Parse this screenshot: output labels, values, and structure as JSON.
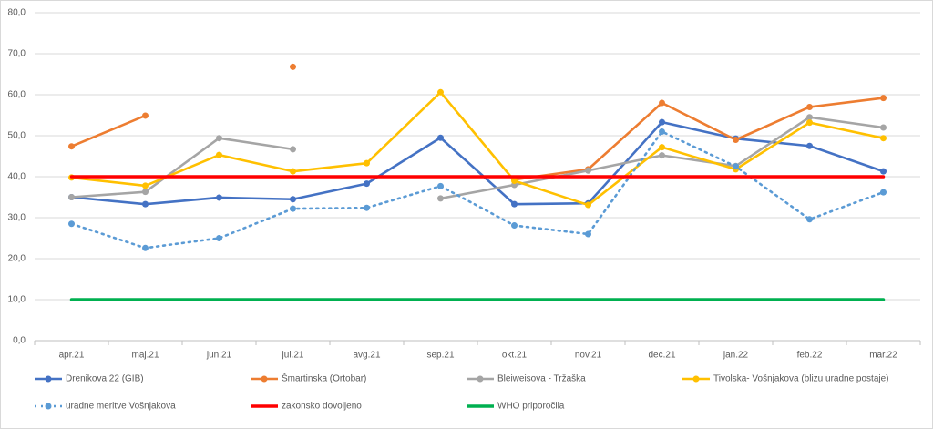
{
  "chart_data": {
    "type": "line",
    "categories": [
      "apr.21",
      "maj.21",
      "jun.21",
      "jul.21",
      "avg.21",
      "sep.21",
      "okt.21",
      "nov.21",
      "dec.21",
      "jan.22",
      "feb.22",
      "mar.22"
    ],
    "series": [
      {
        "name": "Drenikova 22 (GIB)",
        "color": "#4472c4",
        "dash": "solid",
        "marker": true,
        "values": [
          35.0,
          33.3,
          34.9,
          34.5,
          38.3,
          49.5,
          33.3,
          33.5,
          53.3,
          49.3,
          47.5,
          41.3
        ]
      },
      {
        "name": "Šmartinska (Ortobar)",
        "color": "#ed7d31",
        "dash": "solid",
        "marker": true,
        "values": [
          47.4,
          54.9,
          null,
          66.8,
          null,
          null,
          39.3,
          41.8,
          58.0,
          49.0,
          57.0,
          59.2
        ]
      },
      {
        "name": "Bleiweisova - Tržaška",
        "color": "#a5a5a5",
        "dash": "solid",
        "marker": true,
        "values": [
          35.0,
          36.3,
          49.4,
          46.7,
          null,
          34.7,
          38.0,
          41.5,
          45.2,
          42.6,
          54.5,
          52.0
        ]
      },
      {
        "name": "Tivolska- Vošnjakova (blizu uradne postaje)",
        "color": "#ffc000",
        "dash": "solid",
        "marker": true,
        "values": [
          39.8,
          37.8,
          45.3,
          41.3,
          43.3,
          60.6,
          39.0,
          33.1,
          47.2,
          41.8,
          53.2,
          49.4
        ]
      },
      {
        "name": "uradne meritve Vošnjakova",
        "color": "#5b9bd5",
        "dash": "dotted",
        "marker": true,
        "values": [
          28.5,
          22.6,
          25.0,
          32.2,
          32.4,
          37.7,
          28.1,
          26.0,
          51.0,
          42.5,
          29.6,
          36.2
        ]
      },
      {
        "name": "zakonsko dovoljeno",
        "color": "#ff0000",
        "dash": "solid",
        "marker": false,
        "values": [
          40,
          40,
          40,
          40,
          40,
          40,
          40,
          40,
          40,
          40,
          40,
          40
        ]
      },
      {
        "name": "WHO priporočila",
        "color": "#00b050",
        "dash": "solid",
        "marker": false,
        "values": [
          10,
          10,
          10,
          10,
          10,
          10,
          10,
          10,
          10,
          10,
          10,
          10
        ]
      }
    ],
    "ylim": [
      0,
      80
    ],
    "yticks": [
      {
        "value": 0,
        "label": "0,0"
      },
      {
        "value": 10,
        "label": "10,0"
      },
      {
        "value": 20,
        "label": "20,0"
      },
      {
        "value": 30,
        "label": "30,0"
      },
      {
        "value": 40,
        "label": "40,0"
      },
      {
        "value": 50,
        "label": "50,0"
      },
      {
        "value": 60,
        "label": "60,0"
      },
      {
        "value": 70,
        "label": "70,0"
      },
      {
        "value": 80,
        "label": "80,0"
      }
    ],
    "grid": true,
    "legend": "bottom"
  }
}
